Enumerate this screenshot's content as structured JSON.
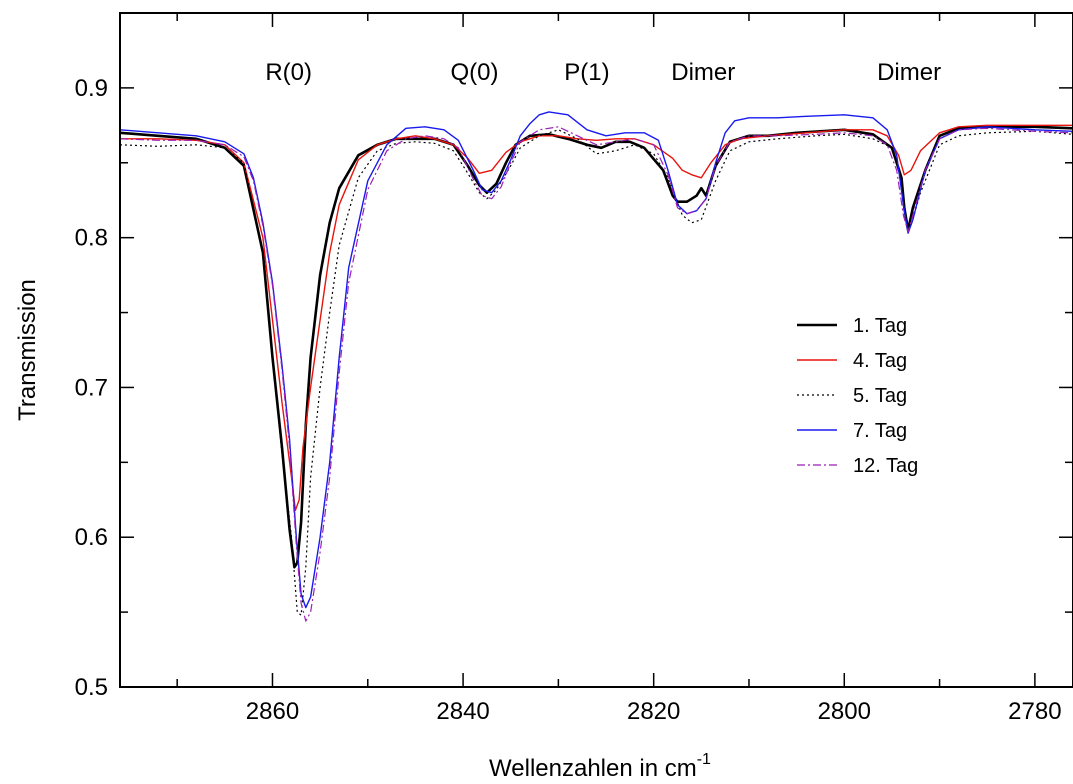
{
  "chart_data": {
    "type": "line",
    "xlabel": "Wellenzahlen in cm",
    "xlabel_sup": "-1",
    "ylabel": "Transmission",
    "xlim": [
      2876,
      2776
    ],
    "ylim": [
      0.5,
      0.95
    ],
    "x_reversed": true,
    "xticks": [
      2860,
      2840,
      2820,
      2800,
      2780
    ],
    "xtick_labels": [
      "2860",
      "2840",
      "2820",
      "2800",
      "2780"
    ],
    "xminor": [
      2870,
      2850,
      2830,
      2810,
      2790
    ],
    "yticks": [
      0.5,
      0.6,
      0.7,
      0.8,
      0.9
    ],
    "ytick_labels": [
      "0.5",
      "0.6",
      "0.7",
      "0.8",
      "0.9"
    ],
    "yminor": [
      0.55,
      0.65,
      0.75,
      0.85
    ],
    "grid": false,
    "legend_position": "center-right",
    "annotations": [
      {
        "text": "R(0)",
        "x": 2858.3
      },
      {
        "text": "Q(0)",
        "x": 2838.8
      },
      {
        "text": "P(1)",
        "x": 2827.0
      },
      {
        "text": "Dimer",
        "x": 2814.8
      },
      {
        "text": "Dimer",
        "x": 2793.2
      }
    ],
    "series": [
      {
        "name": "1. Tag",
        "color": "#000000",
        "dash": "",
        "width": 2.6,
        "x": [
          2876,
          2872,
          2868,
          2865,
          2863,
          2861,
          2860,
          2859,
          2858.2,
          2857.7,
          2857.4,
          2857,
          2856.5,
          2856,
          2855,
          2854,
          2853,
          2851,
          2849,
          2847,
          2845,
          2843,
          2841,
          2839.5,
          2838.3,
          2837.5,
          2836.5,
          2835.5,
          2834.5,
          2833,
          2831,
          2829,
          2827,
          2825.5,
          2824,
          2822.5,
          2821,
          2819,
          2818,
          2817.5,
          2816.5,
          2815.5,
          2815,
          2814.5,
          2813.5,
          2812,
          2810,
          2808,
          2805,
          2800,
          2797,
          2795,
          2794,
          2793.7,
          2793.3,
          2792.8,
          2791.5,
          2790,
          2788,
          2785,
          2780,
          2776
        ],
        "y": [
          0.87,
          0.868,
          0.866,
          0.86,
          0.848,
          0.79,
          0.72,
          0.66,
          0.605,
          0.58,
          0.583,
          0.61,
          0.675,
          0.72,
          0.775,
          0.81,
          0.833,
          0.855,
          0.862,
          0.866,
          0.866,
          0.866,
          0.862,
          0.848,
          0.835,
          0.83,
          0.836,
          0.85,
          0.862,
          0.868,
          0.869,
          0.866,
          0.862,
          0.86,
          0.864,
          0.864,
          0.86,
          0.845,
          0.828,
          0.824,
          0.824,
          0.828,
          0.833,
          0.828,
          0.848,
          0.864,
          0.868,
          0.868,
          0.87,
          0.872,
          0.869,
          0.86,
          0.84,
          0.82,
          0.805,
          0.82,
          0.845,
          0.868,
          0.873,
          0.874,
          0.874,
          0.873
        ]
      },
      {
        "name": "4. Tag",
        "color": "#e8140e",
        "dash": "",
        "width": 1.4,
        "x": [
          2876,
          2872,
          2868,
          2865,
          2863,
          2861,
          2860,
          2859,
          2858,
          2857.6,
          2857.2,
          2856.8,
          2856,
          2855,
          2854,
          2853,
          2851,
          2849,
          2847,
          2845,
          2843,
          2841,
          2839.5,
          2838.3,
          2837,
          2835.5,
          2834,
          2832,
          2830,
          2828,
          2826,
          2824,
          2822,
          2820,
          2818,
          2817,
          2816,
          2815,
          2814,
          2812.5,
          2811,
          2808,
          2804,
          2800,
          2797,
          2795.5,
          2794.3,
          2793.7,
          2793,
          2792,
          2790,
          2788,
          2785,
          2780,
          2776
        ],
        "y": [
          0.866,
          0.866,
          0.865,
          0.862,
          0.85,
          0.8,
          0.745,
          0.69,
          0.64,
          0.618,
          0.625,
          0.66,
          0.7,
          0.745,
          0.79,
          0.822,
          0.852,
          0.862,
          0.866,
          0.868,
          0.866,
          0.862,
          0.853,
          0.843,
          0.845,
          0.857,
          0.864,
          0.868,
          0.868,
          0.866,
          0.865,
          0.866,
          0.866,
          0.862,
          0.853,
          0.845,
          0.842,
          0.84,
          0.85,
          0.862,
          0.866,
          0.868,
          0.87,
          0.872,
          0.872,
          0.868,
          0.855,
          0.842,
          0.845,
          0.858,
          0.87,
          0.874,
          0.875,
          0.875,
          0.875
        ]
      },
      {
        "name": "5. Tag",
        "color": "#000000",
        "dash": "2,3",
        "width": 1.2,
        "x": [
          2876,
          2872,
          2868,
          2865,
          2863,
          2861,
          2860,
          2859,
          2858,
          2857.4,
          2857,
          2856.5,
          2856,
          2855,
          2854,
          2853,
          2851,
          2849,
          2847,
          2845,
          2843,
          2841,
          2839.5,
          2838.3,
          2837.5,
          2836.5,
          2835,
          2834,
          2832,
          2830,
          2828,
          2826,
          2824,
          2822,
          2820,
          2818.5,
          2817,
          2816,
          2815,
          2813.5,
          2812,
          2810,
          2807,
          2803,
          2800,
          2797,
          2795,
          2794,
          2793.5,
          2793,
          2792,
          2790,
          2788,
          2785,
          2780,
          2776
        ],
        "y": [
          0.862,
          0.861,
          0.862,
          0.86,
          0.85,
          0.79,
          0.72,
          0.655,
          0.6,
          0.55,
          0.548,
          0.58,
          0.64,
          0.7,
          0.75,
          0.795,
          0.84,
          0.858,
          0.863,
          0.864,
          0.863,
          0.858,
          0.843,
          0.83,
          0.826,
          0.832,
          0.848,
          0.86,
          0.868,
          0.872,
          0.866,
          0.856,
          0.858,
          0.862,
          0.856,
          0.84,
          0.815,
          0.81,
          0.812,
          0.838,
          0.858,
          0.864,
          0.866,
          0.868,
          0.869,
          0.866,
          0.86,
          0.84,
          0.812,
          0.808,
          0.83,
          0.862,
          0.868,
          0.87,
          0.871,
          0.869
        ]
      },
      {
        "name": "7. Tag",
        "color": "#1a1aee",
        "dash": "",
        "width": 1.4,
        "x": [
          2876,
          2872,
          2868,
          2865,
          2863,
          2862,
          2861,
          2860,
          2859,
          2858.2,
          2857.5,
          2857,
          2856.5,
          2856,
          2855,
          2854,
          2853,
          2852,
          2850,
          2848,
          2846,
          2844,
          2842,
          2840.5,
          2839,
          2838,
          2837,
          2836,
          2835,
          2834,
          2833,
          2832,
          2831,
          2829,
          2827,
          2825,
          2823,
          2821,
          2819.5,
          2818.5,
          2817.5,
          2816.5,
          2815.5,
          2814.5,
          2813.5,
          2812.5,
          2811.5,
          2810,
          2807,
          2804,
          2800,
          2797,
          2795.5,
          2794.5,
          2793.8,
          2793.3,
          2792.8,
          2791.5,
          2790,
          2788,
          2785,
          2780,
          2776
        ],
        "y": [
          0.872,
          0.87,
          0.868,
          0.864,
          0.856,
          0.84,
          0.81,
          0.77,
          0.715,
          0.665,
          0.6,
          0.562,
          0.553,
          0.56,
          0.6,
          0.65,
          0.72,
          0.78,
          0.838,
          0.862,
          0.873,
          0.874,
          0.872,
          0.865,
          0.846,
          0.832,
          0.83,
          0.838,
          0.852,
          0.868,
          0.876,
          0.882,
          0.884,
          0.882,
          0.872,
          0.868,
          0.87,
          0.87,
          0.865,
          0.845,
          0.822,
          0.816,
          0.818,
          0.826,
          0.85,
          0.87,
          0.878,
          0.88,
          0.88,
          0.881,
          0.882,
          0.88,
          0.872,
          0.855,
          0.822,
          0.803,
          0.812,
          0.845,
          0.866,
          0.872,
          0.874,
          0.872,
          0.871
        ]
      },
      {
        "name": "12. Tag",
        "color": "#9b1fb5",
        "dash": "8,3,2,3",
        "width": 1.2,
        "x": [
          2876,
          2872,
          2868,
          2865,
          2863,
          2862,
          2861,
          2860,
          2859,
          2858.2,
          2857.5,
          2857,
          2856.5,
          2856,
          2855,
          2854,
          2853,
          2852,
          2850,
          2848,
          2846,
          2844,
          2842,
          2840.5,
          2839,
          2838,
          2837,
          2836,
          2835,
          2834,
          2832,
          2830,
          2828,
          2826,
          2824,
          2822,
          2820,
          2818.5,
          2817.5,
          2816.5,
          2815.5,
          2814.5,
          2813.5,
          2812,
          2810,
          2807,
          2803,
          2800,
          2797,
          2795.5,
          2794.5,
          2793.8,
          2793.3,
          2792.8,
          2791.5,
          2790,
          2788,
          2785,
          2780,
          2776
        ],
        "y": [
          0.866,
          0.865,
          0.865,
          0.862,
          0.854,
          0.838,
          0.808,
          0.768,
          0.712,
          0.66,
          0.595,
          0.556,
          0.544,
          0.55,
          0.59,
          0.64,
          0.71,
          0.77,
          0.832,
          0.858,
          0.866,
          0.868,
          0.866,
          0.86,
          0.84,
          0.828,
          0.826,
          0.834,
          0.85,
          0.864,
          0.872,
          0.874,
          0.868,
          0.862,
          0.864,
          0.866,
          0.862,
          0.842,
          0.82,
          0.816,
          0.818,
          0.826,
          0.848,
          0.864,
          0.868,
          0.868,
          0.869,
          0.87,
          0.868,
          0.862,
          0.845,
          0.815,
          0.804,
          0.815,
          0.845,
          0.866,
          0.872,
          0.873,
          0.871,
          0.87
        ]
      }
    ]
  }
}
